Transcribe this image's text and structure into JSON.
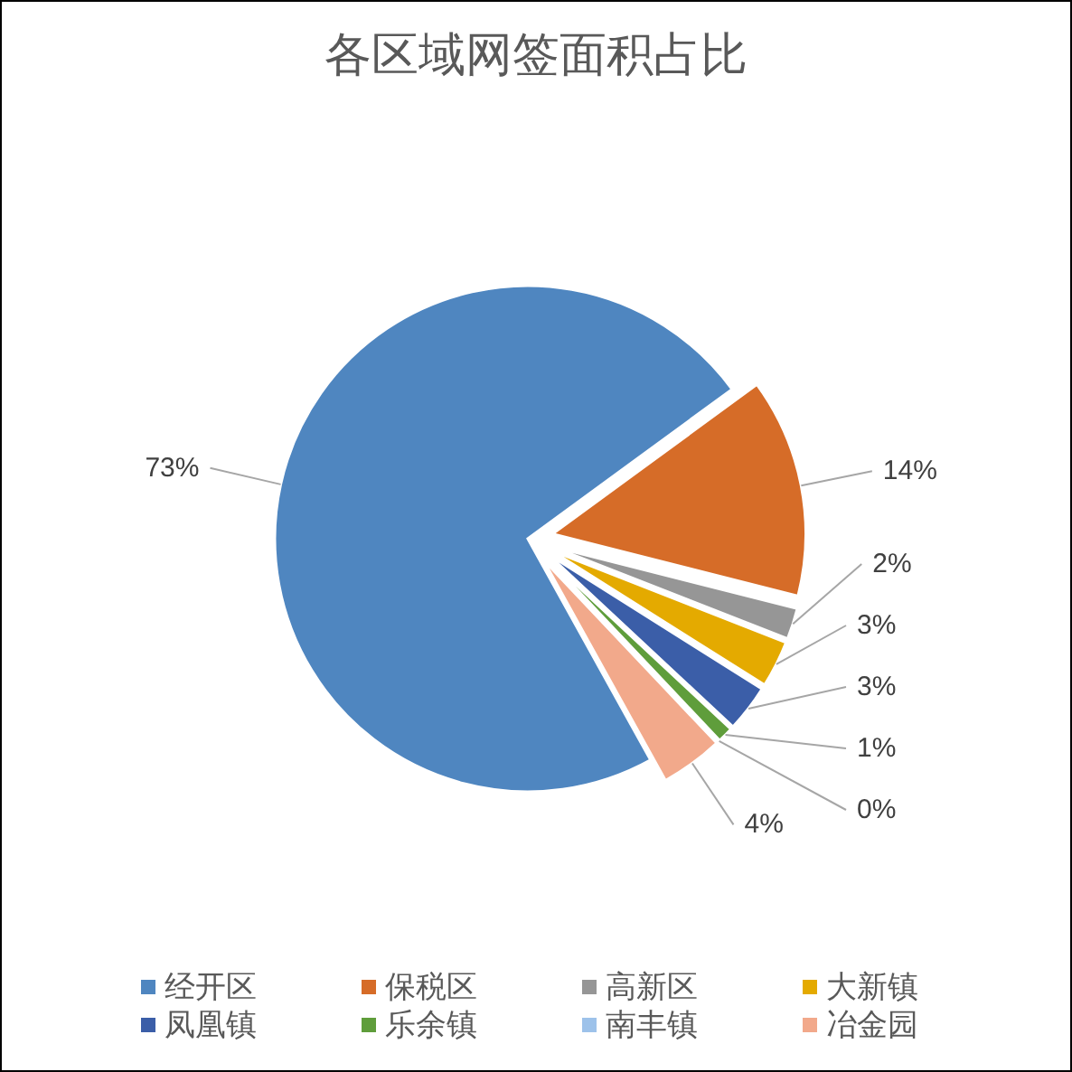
{
  "chart_data": {
    "type": "pie",
    "title": "各区域网签面积占比",
    "categories": [
      "经开区",
      "保税区",
      "高新区",
      "大新镇",
      "凤凰镇",
      "乐余镇",
      "南丰镇",
      "冶金园"
    ],
    "values": [
      73,
      14,
      2,
      3,
      3,
      1,
      0,
      4
    ],
    "colors": [
      "#4f86c0",
      "#d66c28",
      "#969696",
      "#e4aa00",
      "#3b5ea8",
      "#5f9d3b",
      "#9dc2ea",
      "#f2a98b"
    ],
    "value_labels": [
      "73%",
      "14%",
      "2%",
      "3%",
      "3%",
      "1%",
      "0%",
      "4%"
    ],
    "legend": "bottom"
  }
}
